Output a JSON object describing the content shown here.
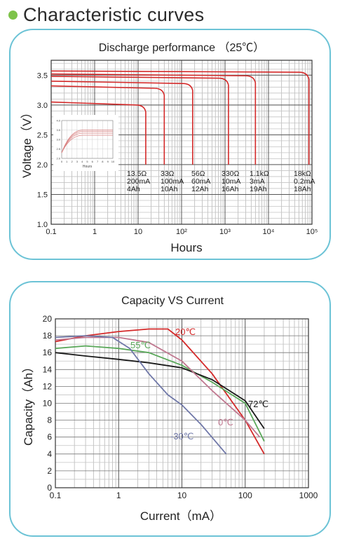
{
  "page": {
    "title": "Characteristic curves",
    "accent_dot_color": "#7ec34a",
    "panel_border_color": "#6cc3d6"
  },
  "chart_data": [
    {
      "type": "line",
      "title": "Discharge performance （25℃）",
      "xlabel": "Hours",
      "ylabel": "Voltage（V）",
      "x_scale": "log",
      "xlim": [
        0.1,
        100000
      ],
      "ylim": [
        1.0,
        3.75
      ],
      "x_ticks": [
        "0.1",
        "1",
        "10",
        "10²",
        "10³",
        "10⁴",
        "10⁵"
      ],
      "y_ticks": [
        "1.0",
        "1.5",
        "2.0",
        "2.5",
        "3.0",
        "3.5"
      ],
      "grid": true,
      "line_color": "#d42a2a",
      "series": [
        {
          "name": "13.5Ω 200mA 4Ah",
          "load": "13.5Ω",
          "current": "200mA",
          "capacity": "4Ah",
          "x": [
            0.1,
            15
          ],
          "y": [
            3.05,
            3.0
          ]
        },
        {
          "name": "33Ω 100mA 10Ah",
          "load": "33Ω",
          "current": "100mA",
          "capacity": "10Ah",
          "x": [
            0.1,
            40
          ],
          "y": [
            3.32,
            3.28
          ]
        },
        {
          "name": "56Ω 60mA 12Ah",
          "load": "56Ω",
          "current": "60mA",
          "capacity": "12Ah",
          "x": [
            0.1,
            180
          ],
          "y": [
            3.4,
            3.36
          ]
        },
        {
          "name": "330Ω 10mA 16Ah",
          "load": "330Ω",
          "current": "10mA",
          "capacity": "16Ah",
          "x": [
            0.1,
            1200
          ],
          "y": [
            3.48,
            3.45
          ]
        },
        {
          "name": "1.1kΩ 3mA 19Ah",
          "load": "1.1kΩ",
          "current": "3mA",
          "capacity": "19Ah",
          "x": [
            0.1,
            5000
          ],
          "y": [
            3.52,
            3.49
          ]
        },
        {
          "name": "18kΩ 0.2mA 18Ah",
          "load": "18kΩ",
          "current": "0.2mA",
          "capacity": "18Ah",
          "x": [
            0.1,
            85000
          ],
          "y": [
            3.57,
            3.55
          ]
        }
      ],
      "inset": {
        "axis_label": "Hours",
        "y_ticks": [
          "4.0",
          "3.5",
          "3.0",
          "2.5",
          "2.0"
        ],
        "x_ticks": [
          "0",
          "1",
          "2",
          "3",
          "4",
          "5",
          "6",
          "7",
          "8",
          "9",
          "10"
        ]
      }
    },
    {
      "type": "line",
      "title": "Capacity VS Current",
      "xlabel": "Current（mA）",
      "ylabel": "Capacity（Ah）",
      "x_scale": "log",
      "xlim": [
        0.1,
        1000
      ],
      "ylim": [
        0,
        20
      ],
      "x_ticks": [
        "0.1",
        "1",
        "10",
        "100",
        "1000"
      ],
      "y_ticks": [
        "0",
        "2",
        "4",
        "6",
        "8",
        "10",
        "12",
        "14",
        "16",
        "18",
        "20"
      ],
      "grid": true,
      "series": [
        {
          "name": "20℃",
          "color": "#d42a2a",
          "x": [
            0.1,
            0.3,
            1,
            3,
            6,
            10,
            30,
            100,
            200
          ],
          "y": [
            17.3,
            18.0,
            18.5,
            18.8,
            18.8,
            17.5,
            13.5,
            8.0,
            4.0
          ]
        },
        {
          "name": "55℃",
          "color": "#5aa85a",
          "x": [
            0.1,
            0.3,
            1,
            3,
            10,
            30,
            100,
            200
          ],
          "y": [
            16.5,
            16.8,
            16.5,
            16.0,
            14.5,
            12.5,
            10.0,
            5.5
          ]
        },
        {
          "name": "72℃",
          "color": "#1a1a1a",
          "x": [
            0.1,
            0.3,
            1,
            3,
            10,
            30,
            100,
            200
          ],
          "y": [
            16.0,
            15.6,
            15.2,
            14.8,
            14.2,
            12.8,
            10.3,
            7.0
          ]
        },
        {
          "name": "0℃",
          "color": "#c07890",
          "x": [
            0.1,
            0.3,
            1,
            3,
            10,
            30,
            100,
            170
          ],
          "y": [
            17.5,
            17.8,
            17.8,
            17.2,
            15.0,
            11.5,
            8.0,
            6.0
          ]
        },
        {
          "name": "-30℃",
          "color": "#7078a8",
          "x": [
            0.1,
            0.3,
            0.8,
            1.5,
            3,
            6,
            10,
            20,
            50
          ],
          "y": [
            17.8,
            18.0,
            17.8,
            16.5,
            13.5,
            11.0,
            9.8,
            7.5,
            4.0
          ]
        }
      ]
    }
  ]
}
